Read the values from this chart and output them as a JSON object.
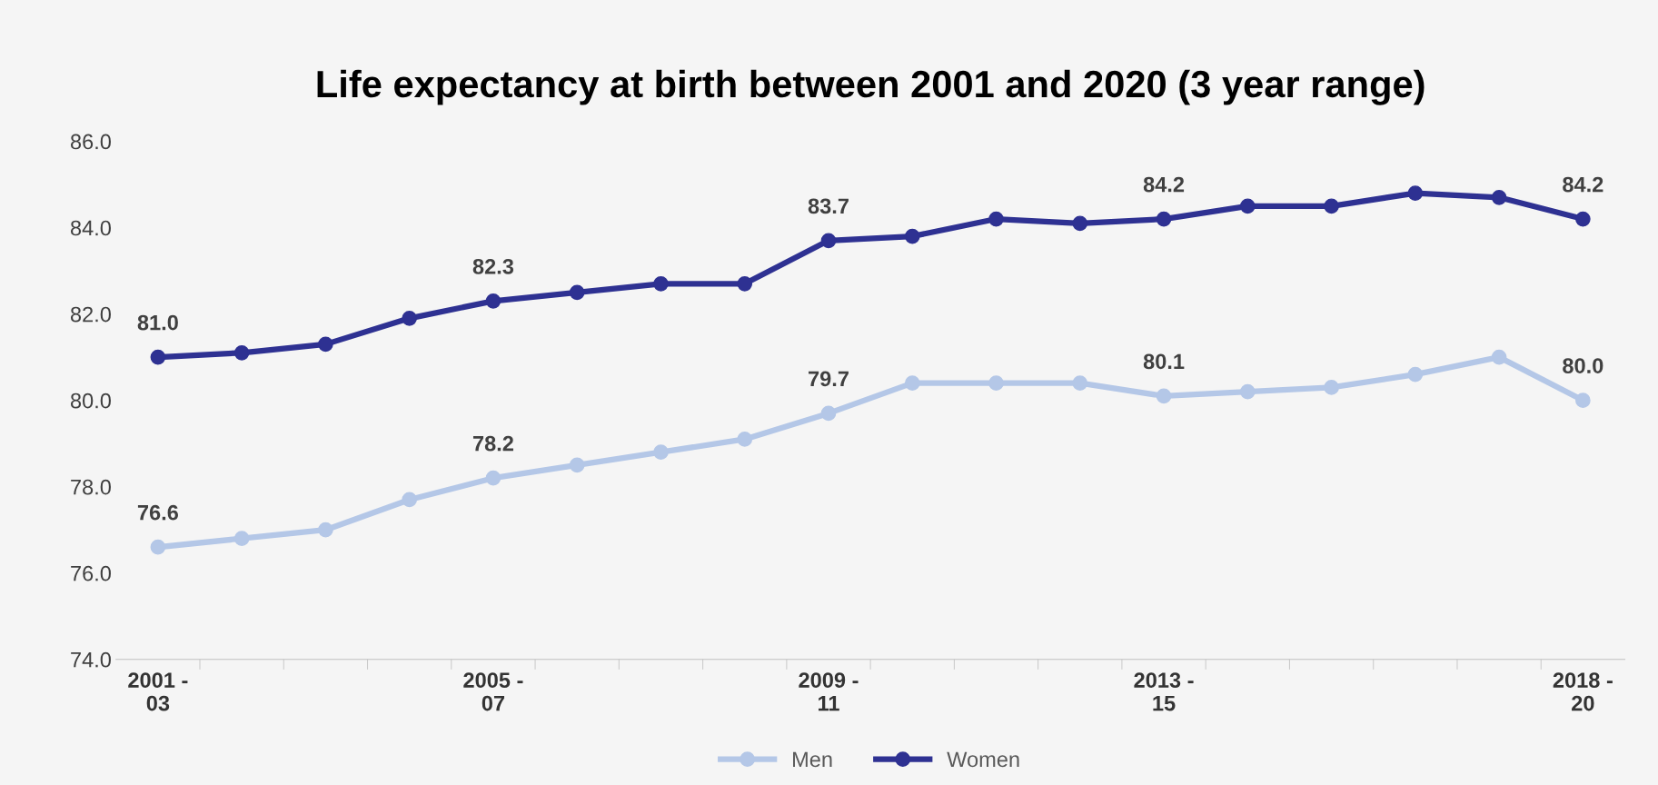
{
  "chart_data": {
    "type": "line",
    "title": "Life expectancy at birth between 2001 and 2020 (3 year range)",
    "categories": [
      "2001 -\n03",
      null,
      null,
      null,
      "2005 -\n07",
      null,
      null,
      null,
      "2009 -\n11",
      null,
      null,
      null,
      "2013 -\n15",
      null,
      null,
      null,
      null,
      "2018 -\n20"
    ],
    "series": [
      {
        "name": "Men",
        "color": "#b4c7e7",
        "values": [
          76.6,
          76.8,
          77.0,
          77.7,
          78.2,
          78.5,
          78.8,
          79.1,
          79.7,
          80.4,
          80.4,
          80.4,
          80.1,
          80.2,
          80.3,
          80.6,
          81.0,
          80.0
        ],
        "value_labels": [
          "76.6",
          null,
          null,
          null,
          "78.2",
          null,
          null,
          null,
          "79.7",
          null,
          null,
          null,
          "80.1",
          null,
          null,
          null,
          null,
          "80.0"
        ]
      },
      {
        "name": "Women",
        "color": "#2e3192",
        "values": [
          81.0,
          81.1,
          81.3,
          81.9,
          82.3,
          82.5,
          82.7,
          82.7,
          83.7,
          83.8,
          84.2,
          84.1,
          84.2,
          84.5,
          84.5,
          84.8,
          84.7,
          84.2
        ],
        "value_labels": [
          "81.0",
          null,
          null,
          null,
          "82.3",
          null,
          null,
          null,
          "83.7",
          null,
          null,
          null,
          "84.2",
          null,
          null,
          null,
          null,
          "84.2"
        ]
      }
    ],
    "ylim": [
      74,
      86
    ],
    "yticks": [
      {
        "value": 74,
        "label": "74.0"
      },
      {
        "value": 76,
        "label": "76.0"
      },
      {
        "value": 78,
        "label": "78.0"
      },
      {
        "value": 80,
        "label": "80.0"
      },
      {
        "value": 82,
        "label": "82.0"
      },
      {
        "value": 84,
        "label": "84.0"
      },
      {
        "value": 86,
        "label": "86.0"
      }
    ],
    "grid": false,
    "legend": "bottom",
    "marker": "circle",
    "line_style": "solid"
  }
}
